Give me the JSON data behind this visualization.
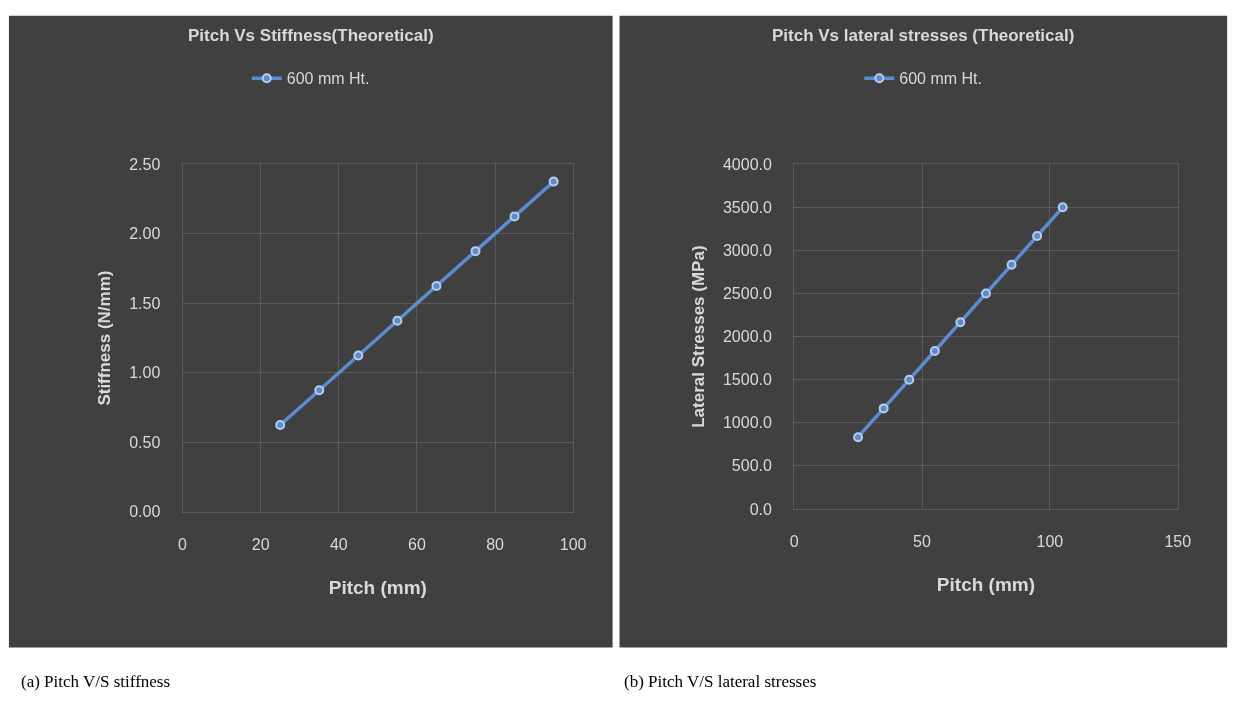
{
  "chart_data": [
    {
      "type": "line",
      "title": "Pitch Vs Stiffness(Theoretical)",
      "xlabel": "Pitch (mm)",
      "ylabel": "Stiffness (N/mm)",
      "x": [
        25,
        35,
        45,
        55,
        65,
        75,
        85,
        95
      ],
      "series": [
        {
          "name": "600 mm Ht.",
          "color": "#5b8bd0",
          "values": [
            0.625,
            0.875,
            1.125,
            1.375,
            1.625,
            1.875,
            2.125,
            2.375
          ]
        }
      ],
      "xlim": [
        0,
        100
      ],
      "xticks": [
        0,
        20,
        40,
        60,
        80,
        100
      ],
      "ylim": [
        0,
        2.5
      ],
      "yticks": [
        {
          "value": 0,
          "label": "0.00"
        },
        {
          "value": 0.5,
          "label": "0.50"
        },
        {
          "value": 1,
          "label": "1.00"
        },
        {
          "value": 1.5,
          "label": "1.50"
        },
        {
          "value": 2,
          "label": "2.00"
        },
        {
          "value": 2.5,
          "label": "2.50"
        }
      ],
      "grid": true,
      "legend": "top",
      "marker": "circle",
      "line_style": "solid",
      "annotations": [
        "(a) Pitch V/S stiffness"
      ]
    },
    {
      "type": "line",
      "title": "Pitch Vs lateral stresses (Theoretical)",
      "xlabel": "Pitch (mm)",
      "ylabel": "Lateral Stresses (MPa)",
      "x": [
        25,
        35,
        45,
        55,
        65,
        75,
        85,
        95,
        105
      ],
      "series": [
        {
          "name": "600 mm Ht.",
          "color": "#5b8bd0",
          "values": [
            833,
            1167,
            1500,
            1833,
            2167,
            2500,
            2833,
            3167,
            3500
          ]
        }
      ],
      "xlim": [
        0,
        150
      ],
      "xticks": [
        0,
        50,
        100,
        150
      ],
      "ylim": [
        0,
        4000
      ],
      "yticks": [
        {
          "value": 0,
          "label": "0.0"
        },
        {
          "value": 500,
          "label": "500.0"
        },
        {
          "value": 1000,
          "label": "1000.0"
        },
        {
          "value": 1500,
          "label": "1500.0"
        },
        {
          "value": 2000,
          "label": "2000.0"
        },
        {
          "value": 2500,
          "label": "2500.0"
        },
        {
          "value": 3000,
          "label": "3000.0"
        },
        {
          "value": 3500,
          "label": "3500.0"
        },
        {
          "value": 4000,
          "label": "4000.0"
        }
      ],
      "grid": true,
      "legend": "top",
      "marker": "circle",
      "line_style": "solid",
      "annotations": [
        "(b) Pitch V/S lateral stresses"
      ]
    }
  ]
}
